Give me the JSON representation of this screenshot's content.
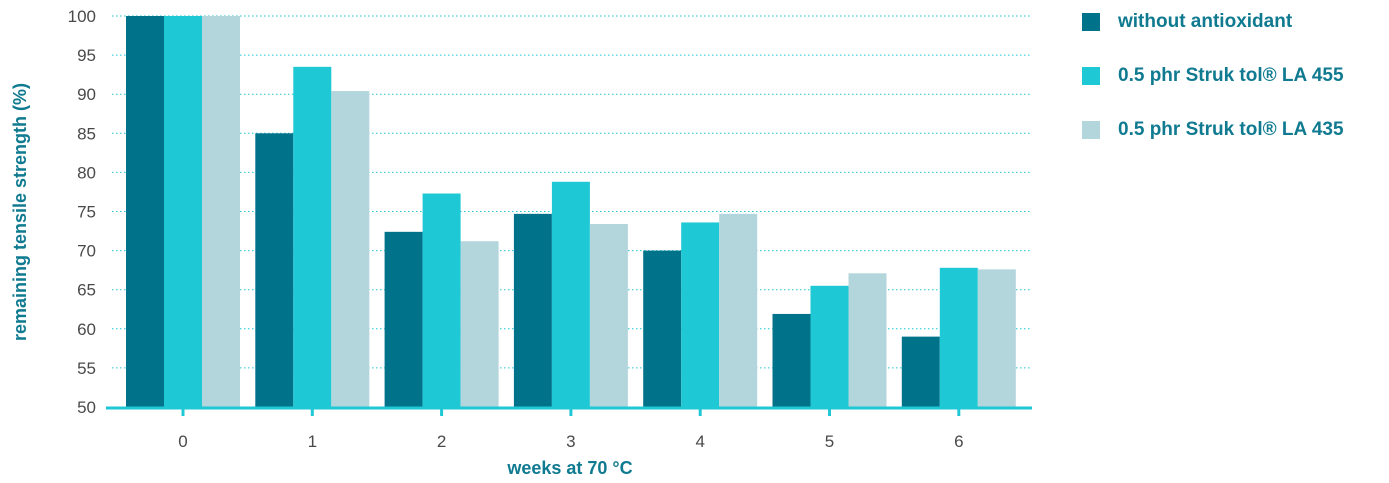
{
  "chart_data": {
    "type": "bar",
    "categories": [
      "0",
      "1",
      "2",
      "3",
      "4",
      "5",
      "6"
    ],
    "series": [
      {
        "name": "without antioxidant",
        "color": "#00728a",
        "values": [
          100,
          85,
          72.4,
          74.7,
          70,
          61.9,
          59
        ]
      },
      {
        "name": "0.5 phr Struk tol® LA 455",
        "color": "#1ec8d4",
        "values": [
          100,
          93.5,
          77.3,
          78.8,
          73.6,
          65.5,
          67.8
        ]
      },
      {
        "name": "0.5 phr Struk tol® LA 435",
        "color": "#b3d6dd",
        "values": [
          100,
          90.4,
          71.2,
          73.4,
          74.7,
          67.1,
          67.6
        ]
      }
    ],
    "xlabel": "weeks at 70 °C",
    "ylabel": "remaining tensile strength (%)",
    "ylim": [
      50,
      100
    ],
    "yticks": [
      50,
      55,
      60,
      65,
      70,
      75,
      80,
      85,
      90,
      95,
      100
    ],
    "grid": true,
    "legend_position": "right"
  },
  "colors": {
    "axis": "#1ec8d4",
    "grid": "#1ec8d4",
    "title": "#0f7a90"
  }
}
